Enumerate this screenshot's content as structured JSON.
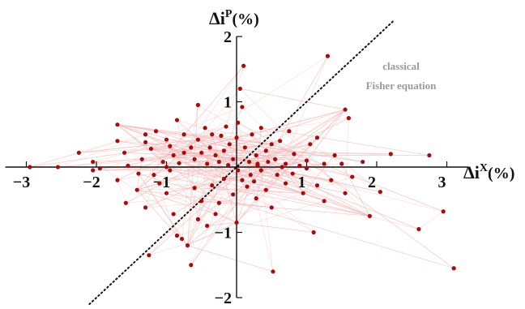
{
  "chart_data": {
    "type": "scatter",
    "xlim": [
      -3.3,
      3.3
    ],
    "ylim": [
      -2.0,
      2.0
    ],
    "x_ticks": [
      {
        "value": -3,
        "label": "−3"
      },
      {
        "value": -2,
        "label": "−2"
      },
      {
        "value": -1,
        "label": "−1"
      },
      {
        "value": 1,
        "label": "1"
      },
      {
        "value": 2,
        "label": "2"
      },
      {
        "value": 3,
        "label": "3"
      }
    ],
    "y_ticks": [
      {
        "value": -2,
        "label": "−2"
      },
      {
        "value": -1,
        "label": "−1"
      },
      {
        "value": 1,
        "label": "1"
      },
      {
        "value": 2,
        "label": "2"
      }
    ],
    "xlabel": {
      "base": "Δi",
      "sup": "X",
      "unit": "(%)"
    },
    "ylabel": {
      "base": "Δi",
      "sup": "P",
      "unit": "(%)"
    },
    "reference_line": {
      "label_line1": "classical",
      "label_line2": "Fisher equation",
      "slope": 1,
      "style": "dotted"
    },
    "colors": {
      "points": "#a50d0d",
      "lines": "#f4b8b8",
      "reference": "#111111"
    },
    "grid": false,
    "points": [
      [
        -2.95,
        0.0
      ],
      [
        -2.55,
        0.0
      ],
      [
        -2.25,
        0.22
      ],
      [
        -2.05,
        0.08
      ],
      [
        -1.95,
        -0.02
      ],
      [
        -1.7,
        0.4
      ],
      [
        -1.7,
        0.65
      ],
      [
        -1.6,
        0.22
      ],
      [
        -1.55,
        0.02
      ],
      [
        -1.35,
        0.12
      ],
      [
        -1.4,
        -0.1
      ],
      [
        -1.3,
        0.5
      ],
      [
        -1.3,
        0.38
      ],
      [
        -1.22,
        0.28
      ],
      [
        -1.18,
        -0.12
      ],
      [
        -1.1,
        -0.25
      ],
      [
        -1.15,
        0.55
      ],
      [
        -1.05,
        0.08
      ],
      [
        -1.0,
        0.42
      ],
      [
        -0.95,
        0.32
      ],
      [
        -0.9,
        0.18
      ],
      [
        -0.85,
        0.72
      ],
      [
        -0.82,
        0.06
      ],
      [
        -0.75,
        0.22
      ],
      [
        -0.75,
        0.5
      ],
      [
        -0.65,
        0.3
      ],
      [
        -0.6,
        0.12
      ],
      [
        -0.55,
        0.42
      ],
      [
        -0.55,
        0.95
      ],
      [
        -0.5,
        0.22
      ],
      [
        -0.45,
        0.6
      ],
      [
        -0.42,
        0.05
      ],
      [
        -0.38,
        0.3
      ],
      [
        -0.35,
        0.5
      ],
      [
        -0.3,
        0.18
      ],
      [
        -0.25,
        0.08
      ],
      [
        -0.22,
        0.48
      ],
      [
        -0.18,
        0.25
      ],
      [
        -0.15,
        0.62
      ],
      [
        -0.12,
        0.03
      ],
      [
        -0.1,
        0.35
      ],
      [
        -0.05,
        0.12
      ],
      [
        0.0,
        0.45
      ],
      [
        0.02,
        0.68
      ],
      [
        0.05,
        1.2
      ],
      [
        0.1,
        1.55
      ],
      [
        0.08,
        0.92
      ],
      [
        0.12,
        0.3
      ],
      [
        0.18,
        0.08
      ],
      [
        0.22,
        0.5
      ],
      [
        0.28,
        0.18
      ],
      [
        0.3,
        0.02
      ],
      [
        0.35,
        0.6
      ],
      [
        0.42,
        0.25
      ],
      [
        0.45,
        0.08
      ],
      [
        0.5,
        0.35
      ],
      [
        0.55,
        0.12
      ],
      [
        0.62,
        0.4
      ],
      [
        0.7,
        0.05
      ],
      [
        0.75,
        0.55
      ],
      [
        0.82,
        0.2
      ],
      [
        0.9,
        0.02
      ],
      [
        1.0,
        0.1
      ],
      [
        1.05,
        0.35
      ],
      [
        1.15,
        0.45
      ],
      [
        1.25,
        0.05
      ],
      [
        1.3,
        1.7
      ],
      [
        1.4,
        0.18
      ],
      [
        1.5,
        0.05
      ],
      [
        1.55,
        0.88
      ],
      [
        1.6,
        0.75
      ],
      [
        1.8,
        0.08
      ],
      [
        2.2,
        0.2
      ],
      [
        2.75,
        0.18
      ],
      [
        -1.7,
        -0.2
      ],
      [
        -1.58,
        -0.55
      ],
      [
        -1.42,
        -0.35
      ],
      [
        -1.3,
        -0.62
      ],
      [
        -1.25,
        -1.35
      ],
      [
        -1.0,
        -0.4
      ],
      [
        -0.9,
        -0.72
      ],
      [
        -0.85,
        -1.05
      ],
      [
        -0.78,
        -1.1
      ],
      [
        -0.7,
        -1.2
      ],
      [
        -0.65,
        -1.5
      ],
      [
        -0.6,
        -0.32
      ],
      [
        -0.5,
        -0.52
      ],
      [
        -0.42,
        -0.9
      ],
      [
        -0.35,
        -0.28
      ],
      [
        -0.25,
        -0.55
      ],
      [
        -0.18,
        -0.18
      ],
      [
        -0.05,
        -0.42
      ],
      [
        0.02,
        -0.05
      ],
      [
        0.08,
        -0.2
      ],
      [
        0.15,
        -0.3
      ],
      [
        0.2,
        -0.12
      ],
      [
        0.28,
        -0.48
      ],
      [
        0.35,
        -0.05
      ],
      [
        0.42,
        -0.35
      ],
      [
        0.5,
        -0.62
      ],
      [
        0.52,
        -1.6
      ],
      [
        0.58,
        -0.12
      ],
      [
        0.7,
        -0.25
      ],
      [
        0.8,
        -0.1
      ],
      [
        0.95,
        -0.4
      ],
      [
        1.1,
        -1.0
      ],
      [
        1.15,
        -0.28
      ],
      [
        1.25,
        -0.52
      ],
      [
        1.35,
        -0.2
      ],
      [
        1.55,
        -0.4
      ],
      [
        1.65,
        -0.15
      ],
      [
        1.9,
        -0.75
      ],
      [
        2.05,
        -0.38
      ],
      [
        2.6,
        -0.95
      ],
      [
        2.95,
        -0.68
      ],
      [
        3.1,
        -1.55
      ],
      [
        -0.55,
        -0.8
      ],
      [
        -0.3,
        -0.72
      ],
      [
        0.0,
        -0.85
      ],
      [
        0.25,
        -0.22
      ],
      [
        -2.05,
        -0.05
      ],
      [
        -1.0,
        0.0
      ],
      [
        -0.95,
        -0.05
      ],
      [
        0.65,
        0.0
      ],
      [
        1.0,
        -0.02
      ],
      [
        0.3,
        0.05
      ]
    ]
  }
}
